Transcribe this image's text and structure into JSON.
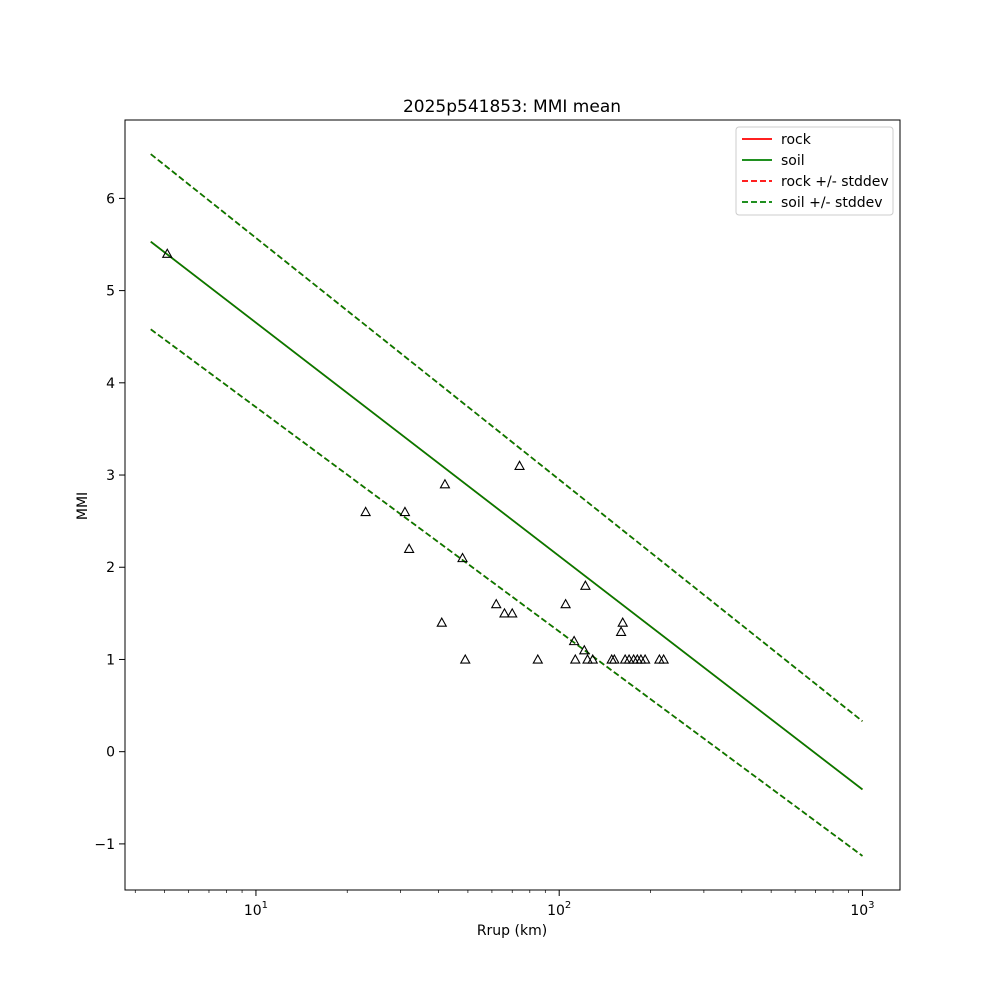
{
  "chart_data": {
    "type": "scatter",
    "title": "2025p541853: MMI mean",
    "xlabel": "Rrup (km)",
    "ylabel": "MMI",
    "x_scale": "log",
    "xlim": [
      3.7,
      1330
    ],
    "ylim": [
      -1.5,
      6.85
    ],
    "x_ticks": [
      {
        "value": 10,
        "base": "10",
        "exp": "1"
      },
      {
        "value": 100,
        "base": "10",
        "exp": "2"
      },
      {
        "value": 1000,
        "base": "10",
        "exp": "3"
      }
    ],
    "y_ticks": [
      -1,
      0,
      1,
      2,
      3,
      4,
      5,
      6
    ],
    "y_tick_labels": [
      "−1",
      "0",
      "1",
      "2",
      "3",
      "4",
      "5",
      "6"
    ],
    "grid": false,
    "legend_position": "top-right",
    "series": [
      {
        "name": "rock",
        "style": "solid",
        "color": "#ff0000",
        "x": [
          4.5,
          1000
        ],
        "y": [
          5.53,
          -0.41
        ]
      },
      {
        "name": "soil",
        "style": "solid",
        "color": "#008000",
        "x": [
          4.5,
          1000
        ],
        "y": [
          5.53,
          -0.41
        ]
      },
      {
        "name": "rock +/- stddev",
        "style": "dashed",
        "color": "#ff0000",
        "x": [
          4.5,
          1000
        ],
        "y": [
          6.48,
          0.33
        ],
        "y_lower": [
          4.58,
          -1.13
        ]
      },
      {
        "name": "soil +/- stddev",
        "style": "dashed",
        "color": "#008000",
        "x": [
          4.5,
          1000
        ],
        "y": [
          6.48,
          0.33
        ],
        "y_lower": [
          4.58,
          -1.13
        ]
      }
    ],
    "observations": {
      "marker": "triangle",
      "x": [
        5.1,
        23,
        31,
        32,
        41,
        42,
        48,
        49,
        62,
        66,
        70,
        74,
        85,
        105,
        112,
        113,
        121,
        122,
        124,
        129,
        149,
        152,
        160,
        162,
        165,
        170,
        176,
        181,
        186,
        192,
        214,
        221
      ],
      "y": [
        5.4,
        2.6,
        2.6,
        2.2,
        1.4,
        2.9,
        2.1,
        1.0,
        1.6,
        1.5,
        1.5,
        3.1,
        1.0,
        1.6,
        1.2,
        1.0,
        1.1,
        1.8,
        1.0,
        1.0,
        1.0,
        1.0,
        1.3,
        1.4,
        1.0,
        1.0,
        1.0,
        1.0,
        1.0,
        1.0,
        1.0,
        1.0
      ]
    }
  }
}
